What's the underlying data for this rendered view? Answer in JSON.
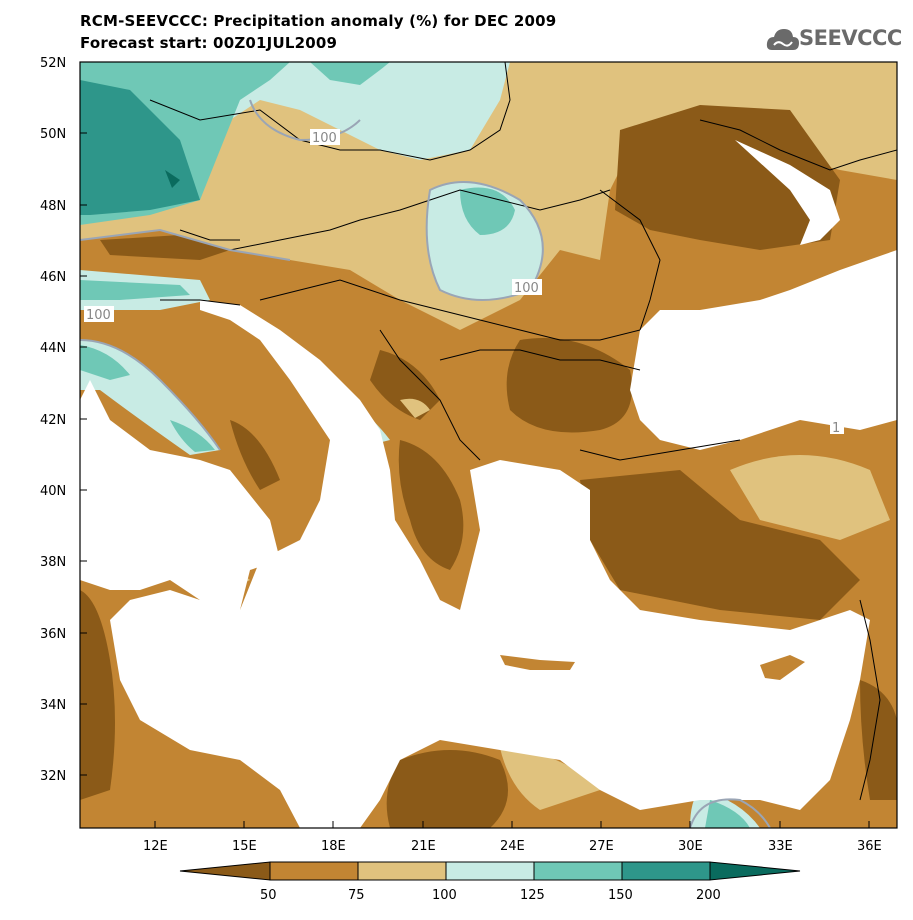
{
  "title_line1": "RCM-SEEVCCC: Precipitation anomaly (%) for DEC 2009",
  "title_line2": "Forecast start: 00Z01JUL2009",
  "logo_text": "SEEVCCC",
  "lat_ticks": [
    "52N",
    "50N",
    "48N",
    "46N",
    "44N",
    "42N",
    "40N",
    "38N",
    "36N",
    "34N",
    "32N"
  ],
  "lon_ticks": [
    "12E",
    "15E",
    "18E",
    "21E",
    "24E",
    "27E",
    "30E",
    "33E",
    "36E"
  ],
  "contour_labels": [
    "100",
    "100",
    "100",
    "1"
  ],
  "colorbar": {
    "labels": [
      "50",
      "75",
      "100",
      "125",
      "150",
      "200"
    ],
    "colors": [
      "#8b5a18",
      "#c28533",
      "#e0c27e",
      "#c8ebe4",
      "#6fc8b6",
      "#2e968a",
      "#0a6b5e"
    ]
  },
  "colors": {
    "dark_brown": "#8b5a18",
    "brown": "#c28533",
    "tan": "#e0c27e",
    "light_teal": "#c8ebe4",
    "teal": "#6fc8b6",
    "dark_teal": "#2e968a",
    "darkest_teal": "#0a6b5e",
    "sea": "#ffffff"
  }
}
